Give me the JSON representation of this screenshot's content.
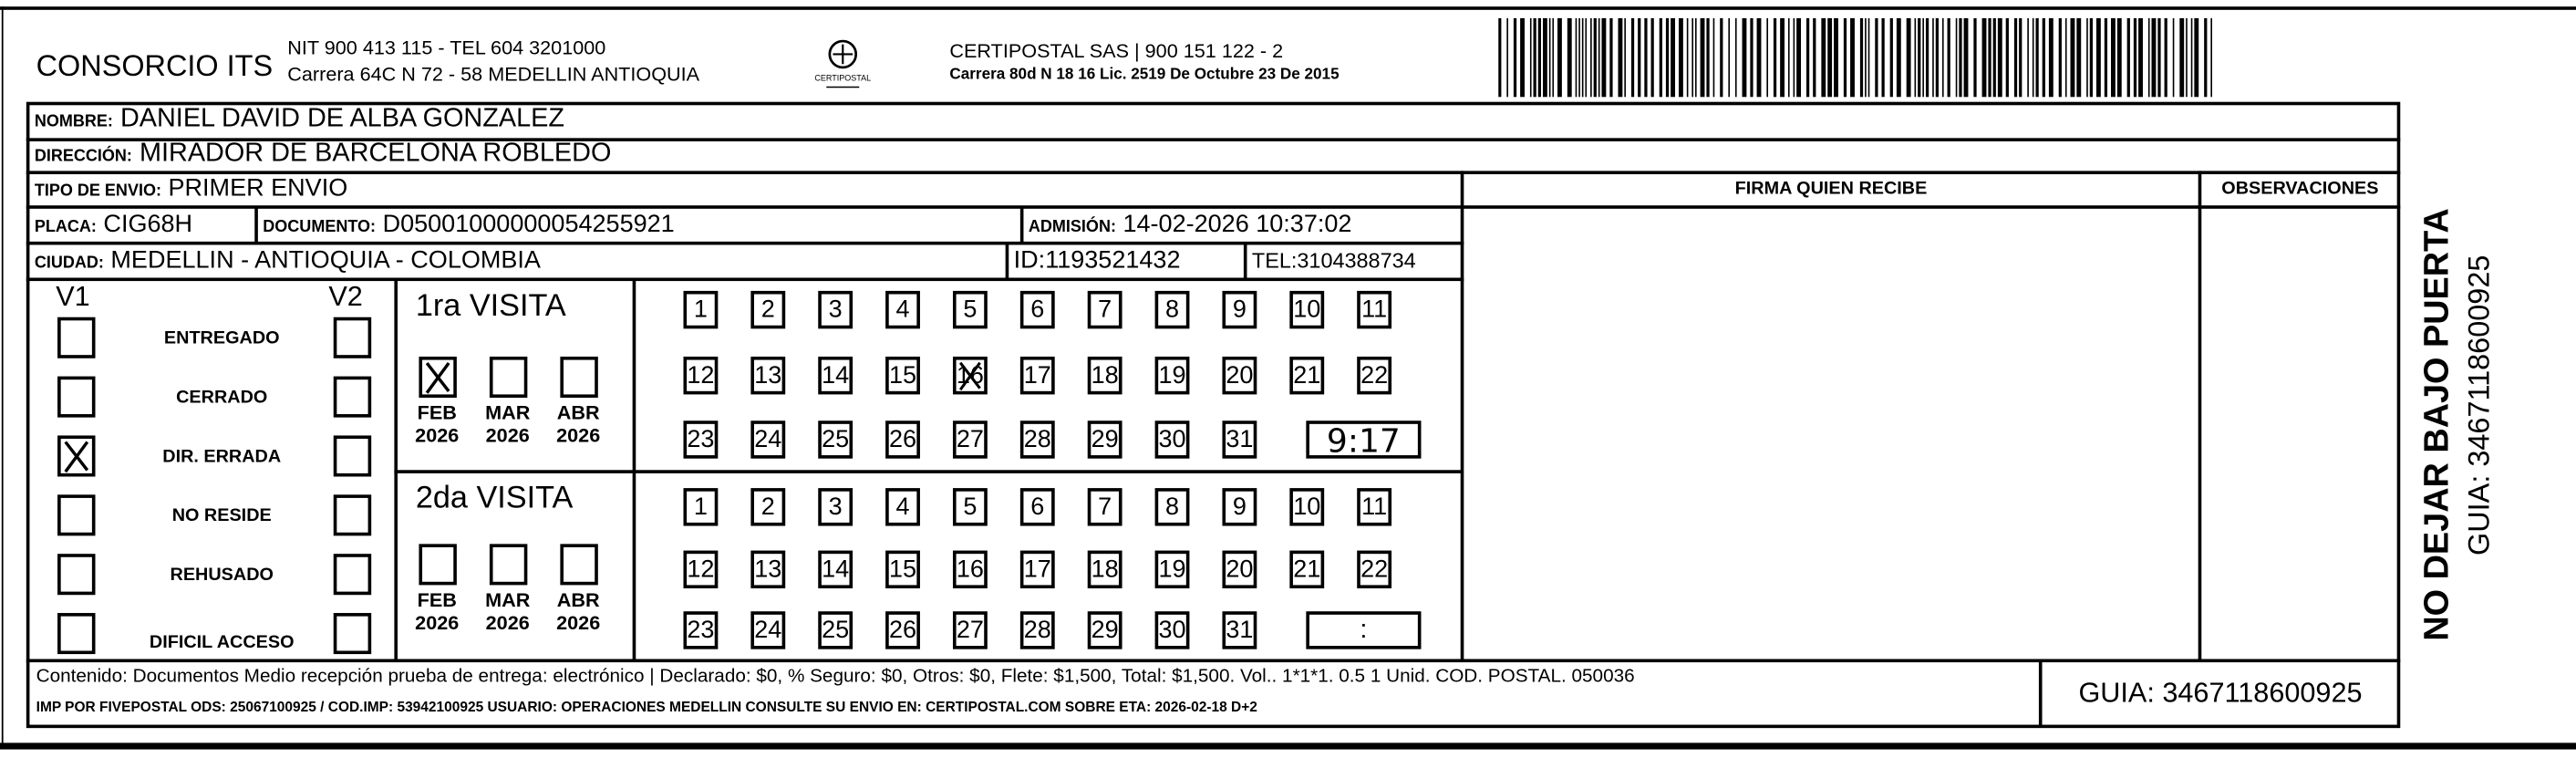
{
  "header": {
    "sender_name": "CONSORCIO ITS",
    "sender_line1": "NIT 900 413 115 - TEL 604 3201000",
    "sender_line2": "Carrera 64C N 72 - 58 MEDELLIN ANTIOQUIA",
    "logo_text": "CERTIPOSTAL",
    "carrier_line1": "CERTIPOSTAL SAS | 900 151 122 - 2",
    "carrier_line2": "Carrera 80d N 18 16  Lic. 2519 De Octubre 23 De 2015",
    "barcode_value": "3467118600925"
  },
  "recipient": {
    "nombre_label": "NOMBRE:",
    "nombre": "DANIEL DAVID DE ALBA GONZALEZ",
    "direccion_label": "DIRECCIÓN:",
    "direccion": "MIRADOR DE BARCELONA ROBLEDO",
    "tipo_label": "TIPO DE ENVIO:",
    "tipo": "PRIMER ENVIO",
    "placa_label": "PLACA:",
    "placa": "CIG68H",
    "documento_label": "DOCUMENTO:",
    "documento": "D05001000000054255921",
    "admision_label": "ADMISIÓN:",
    "admision": "14-02-2026 10:37:02",
    "ciudad_label": "CIUDAD:",
    "ciudad": "MEDELLIN - ANTIOQUIA - COLOMBIA",
    "id_label": "ID:",
    "id": "1193521432",
    "tel_label": "TEL:",
    "tel": "3104388734"
  },
  "signature": {
    "firma_label": "FIRMA QUIEN RECIBE",
    "observaciones_label": "OBSERVACIONES"
  },
  "status": {
    "v1_label": "V1",
    "v2_label": "V2",
    "options": [
      {
        "label": "ENTREGADO",
        "v1": false,
        "v2": false
      },
      {
        "label": "CERRADO",
        "v1": false,
        "v2": false
      },
      {
        "label": "DIR. ERRADA",
        "v1": true,
        "v2": false
      },
      {
        "label": "NO RESIDE",
        "v1": false,
        "v2": false
      },
      {
        "label": "REHUSADO",
        "v1": false,
        "v2": false
      },
      {
        "label": "DIFICIL ACCESO",
        "v1": false,
        "v2": false
      }
    ]
  },
  "visits": [
    {
      "title": "1ra VISITA",
      "months": [
        {
          "month": "FEB",
          "year": "2026",
          "checked": true
        },
        {
          "month": "MAR",
          "year": "2026",
          "checked": false
        },
        {
          "month": "ABR",
          "year": "2026",
          "checked": false
        }
      ],
      "days": [
        "1",
        "2",
        "3",
        "4",
        "5",
        "6",
        "7",
        "8",
        "9",
        "10",
        "11",
        "12",
        "13",
        "14",
        "15",
        "16",
        "17",
        "18",
        "19",
        "20",
        "21",
        "22",
        "23",
        "24",
        "25",
        "26",
        "27",
        "28",
        "29",
        "30",
        "31"
      ],
      "checked_day": "16",
      "time": "9:17"
    },
    {
      "title": "2da VISITA",
      "months": [
        {
          "month": "FEB",
          "year": "2026",
          "checked": false
        },
        {
          "month": "MAR",
          "year": "2026",
          "checked": false
        },
        {
          "month": "ABR",
          "year": "2026",
          "checked": false
        }
      ],
      "days": [
        "1",
        "2",
        "3",
        "4",
        "5",
        "6",
        "7",
        "8",
        "9",
        "10",
        "11",
        "12",
        "13",
        "14",
        "15",
        "16",
        "17",
        "18",
        "19",
        "20",
        "21",
        "22",
        "23",
        "24",
        "25",
        "26",
        "27",
        "28",
        "29",
        "30",
        "31"
      ],
      "checked_day": null,
      "time": ":"
    }
  ],
  "footer": {
    "line1": "Contenido: Documentos Medio recepción prueba de entrega: electrónico | Declarado: $0, % Seguro: $0, Otros: $0, Flete: $1,500, Total: $1,500. Vol.. 1*1*1. 0.5  1 Unid. COD. POSTAL. 050036",
    "line2": "IMP POR FIVEPOSTAL ODS: 25067100925 / COD.IMP: 53942100925 USUARIO: OPERACIONES MEDELLIN CONSULTE SU ENVIO EN: CERTIPOSTAL.COM SOBRE ETA: 2026-02-18 D+2",
    "guia": "GUIA: 3467118600925"
  },
  "side": {
    "warning": "NO DEJAR BAJO PUERTA",
    "guia": "GUIA: 3467118600925"
  }
}
